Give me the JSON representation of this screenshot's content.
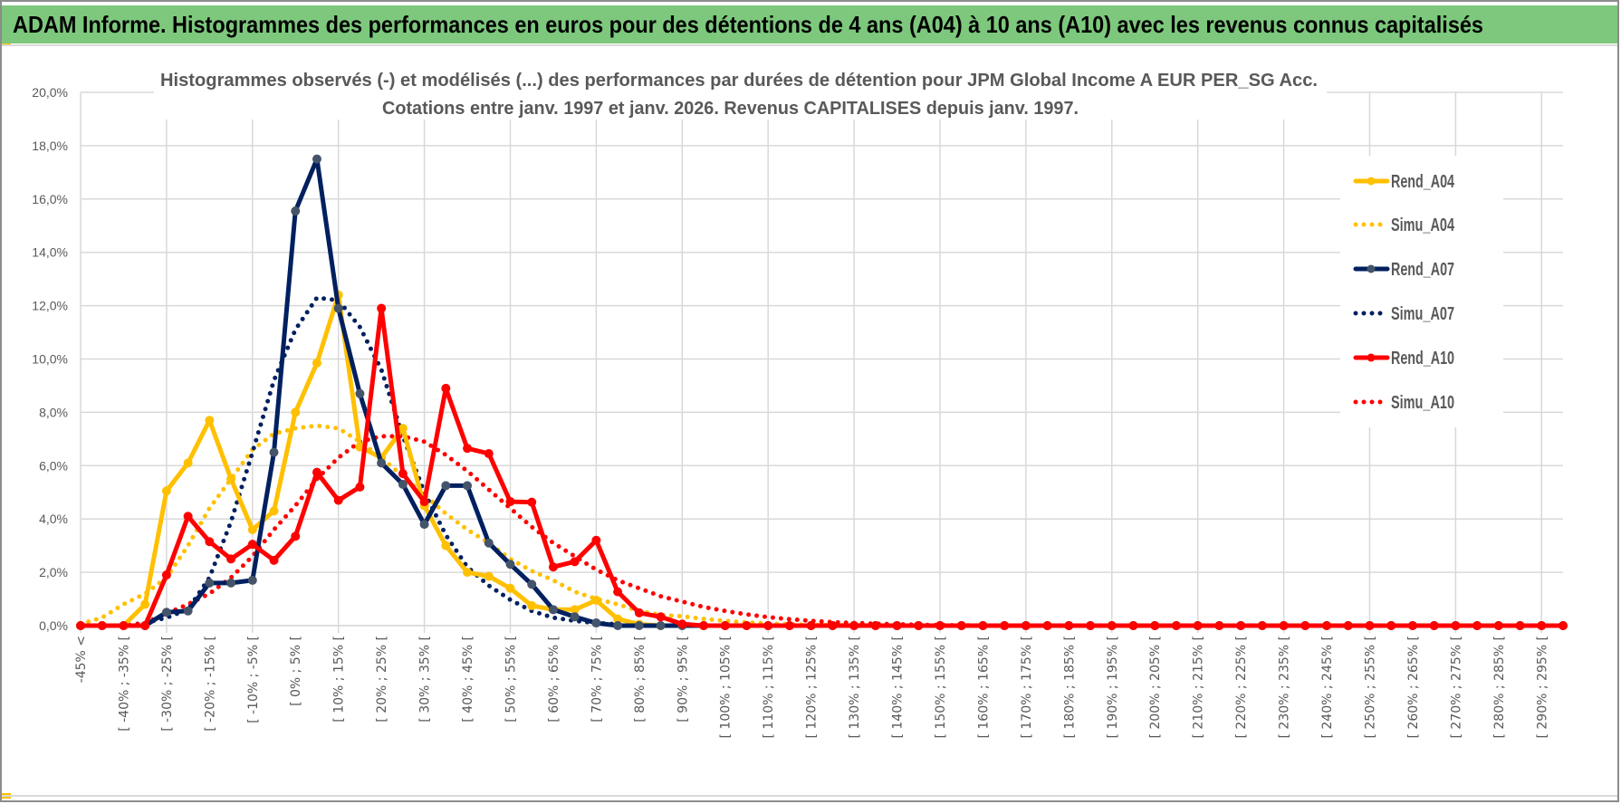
{
  "header": {
    "title": "ADAM Informe. Histogrammes des performances en euros pour des détentions de 4 ans (A04) à 10 ans (A10) avec les revenus connus capitalisés",
    "bar_color": "#7DC87D"
  },
  "chart_data": {
    "type": "line",
    "title_line1": "Histogrammes observés (-) et modélisés (...) des performances par durées de détention pour JPM Global Income A EUR PER_SG Acc.",
    "title_line2": "Cotations entre janv. 1997 et janv. 2026. Revenus CAPITALISES depuis janv. 1997.",
    "xlabel": "",
    "ylabel": "",
    "ylim": [
      0,
      20
    ],
    "y_ticks": [
      "0,0%",
      "2,0%",
      "4,0%",
      "6,0%",
      "8,0%",
      "10,0%",
      "12,0%",
      "14,0%",
      "16,0%",
      "18,0%",
      "20,0%"
    ],
    "n_bins": 70,
    "x_tick_labels_every_other_bin": [
      "-45% <",
      "[ -40% ; -35% [",
      "[ -30% ; -25% [",
      "[ -20% ; -15% [",
      "[ -10% ; -5% [",
      "[ 0% ; 5% [",
      "[ 10% ; 15% [",
      "[ 20% ; 25% [",
      "[ 30% ; 35% [",
      "[ 40% ; 45% [",
      "[ 50% ; 55% [",
      "[ 60% ; 65% [",
      "[ 70% ; 75% [",
      "[ 80% ; 85% [",
      "[ 90% ; 95% [",
      "[ 100% ; 105% [",
      "[ 110% ; 115% [",
      "[ 120% ; 125% [",
      "[ 130% ; 135% [",
      "[ 140% ; 145% [",
      "[ 150% ; 155% [",
      "[ 160% ; 165% [",
      "[ 170% ; 175% [",
      "[ 180% ; 185% [",
      "[ 190% ; 195% [",
      "[ 200% ; 205% [",
      "[ 210% ; 215% [",
      "[ 220% ; 225% [",
      "[ 230% ; 235% [",
      "[ 240% ; 245% [",
      "[ 250% ; 255% [",
      "[ 260% ; 265% [",
      "[ 270% ; 275% [",
      "[ 280% ; 285% [",
      "[ 290% ; 295% ["
    ],
    "grid": true,
    "legend_position": "right",
    "series": [
      {
        "name": "Rend_A04",
        "style": "solid",
        "color": "#FFC000",
        "marker_color": "#FFC000",
        "values": [
          0,
          0,
          0,
          0.8,
          5.05,
          6.1,
          7.7,
          5.5,
          3.6,
          4.3,
          8.0,
          9.85,
          12.4,
          6.7,
          6.3,
          7.4,
          4.5,
          3.0,
          2.0,
          1.85,
          1.4,
          0.75,
          0.6,
          0.6,
          0.95,
          0.25,
          0.05,
          0,
          0,
          0,
          0,
          0,
          0,
          0,
          0,
          0,
          0,
          0,
          0,
          0,
          0,
          0,
          0,
          0,
          0,
          0,
          0,
          0,
          0,
          0,
          0,
          0,
          0,
          0,
          0,
          0,
          0,
          0,
          0,
          0,
          0,
          0,
          0,
          0,
          0,
          0,
          0,
          0,
          0,
          0
        ]
      },
      {
        "name": "Simu_A04",
        "style": "dotted",
        "color": "#FFC000",
        "values": [
          0.06,
          0.3,
          0.8,
          1.2,
          1.8,
          3.0,
          4.4,
          5.5,
          6.6,
          7.2,
          7.4,
          7.5,
          7.4,
          6.9,
          6.3,
          5.6,
          4.9,
          4.2,
          3.6,
          3.1,
          2.5,
          2.05,
          1.7,
          1.27,
          1.0,
          0.8,
          0.55,
          0.4,
          0.35,
          0.25,
          0.18,
          0.12,
          0.08,
          0.05,
          0.03,
          0.02,
          0.01,
          0,
          0,
          0,
          0,
          0,
          0,
          0,
          0,
          0,
          0,
          0,
          0,
          0,
          0,
          0,
          0,
          0,
          0,
          0,
          0,
          0,
          0,
          0,
          0,
          0,
          0,
          0,
          0,
          0,
          0,
          0,
          0,
          0
        ]
      },
      {
        "name": "Rend_A07",
        "style": "solid",
        "color": "#002060",
        "marker_color": "#44546A",
        "values": [
          0,
          0,
          0,
          0,
          0.5,
          0.55,
          1.6,
          1.6,
          1.7,
          6.5,
          15.55,
          17.5,
          11.9,
          8.7,
          6.1,
          5.3,
          3.8,
          5.25,
          5.25,
          3.1,
          2.3,
          1.55,
          0.6,
          0.33,
          0.1,
          0,
          0,
          0,
          0,
          0,
          0,
          0,
          0,
          0,
          0,
          0,
          0,
          0,
          0,
          0,
          0,
          0,
          0,
          0,
          0,
          0,
          0,
          0,
          0,
          0,
          0,
          0,
          0,
          0,
          0,
          0,
          0,
          0,
          0,
          0,
          0,
          0,
          0,
          0,
          0,
          0,
          0,
          0,
          0,
          0
        ]
      },
      {
        "name": "Simu_A07",
        "style": "dotted",
        "color": "#002060",
        "values": [
          0,
          0,
          0,
          0.1,
          0.3,
          0.6,
          1.8,
          3.9,
          6.5,
          9.2,
          11.1,
          12.3,
          12.2,
          11.2,
          9.6,
          7.1,
          5.0,
          3.4,
          2.2,
          1.5,
          0.97,
          0.55,
          0.3,
          0.18,
          0.1,
          0.05,
          0,
          0,
          0,
          0,
          0,
          0,
          0,
          0,
          0,
          0,
          0,
          0,
          0,
          0,
          0,
          0,
          0,
          0,
          0,
          0,
          0,
          0,
          0,
          0,
          0,
          0,
          0,
          0,
          0,
          0,
          0,
          0,
          0,
          0,
          0,
          0,
          0,
          0,
          0,
          0,
          0,
          0,
          0,
          0
        ]
      },
      {
        "name": "Rend_A10",
        "style": "solid",
        "color": "#FF0000",
        "marker_color": "#FF0000",
        "values": [
          0,
          0,
          0,
          0,
          1.9,
          4.1,
          3.15,
          2.5,
          3.05,
          2.45,
          3.35,
          5.75,
          4.7,
          5.2,
          11.9,
          5.7,
          4.65,
          8.9,
          6.65,
          6.45,
          4.65,
          4.63,
          2.2,
          2.4,
          3.2,
          1.27,
          0.48,
          0.33,
          0.06,
          0,
          0,
          0,
          0,
          0,
          0,
          0,
          0,
          0,
          0,
          0,
          0,
          0,
          0,
          0,
          0,
          0,
          0,
          0,
          0,
          0,
          0,
          0,
          0,
          0,
          0,
          0,
          0,
          0,
          0,
          0,
          0,
          0,
          0,
          0,
          0,
          0,
          0,
          0,
          0,
          0
        ]
      },
      {
        "name": "Simu_A10",
        "style": "dotted",
        "color": "#FF0000",
        "values": [
          0,
          0,
          0,
          0.1,
          0.45,
          0.8,
          1.2,
          1.8,
          2.6,
          3.6,
          4.5,
          5.5,
          6.3,
          6.9,
          7.1,
          7.1,
          6.9,
          6.4,
          5.8,
          5.1,
          4.4,
          3.7,
          3.1,
          2.6,
          2.1,
          1.7,
          1.4,
          1.1,
          0.9,
          0.7,
          0.55,
          0.42,
          0.32,
          0.24,
          0.18,
          0.13,
          0.1,
          0.07,
          0.05,
          0.03,
          0.02,
          0.01,
          0,
          0,
          0,
          0,
          0,
          0,
          0,
          0,
          0,
          0,
          0,
          0,
          0,
          0,
          0,
          0,
          0,
          0,
          0,
          0,
          0,
          0,
          0,
          0,
          0,
          0,
          0,
          0
        ]
      }
    ]
  }
}
